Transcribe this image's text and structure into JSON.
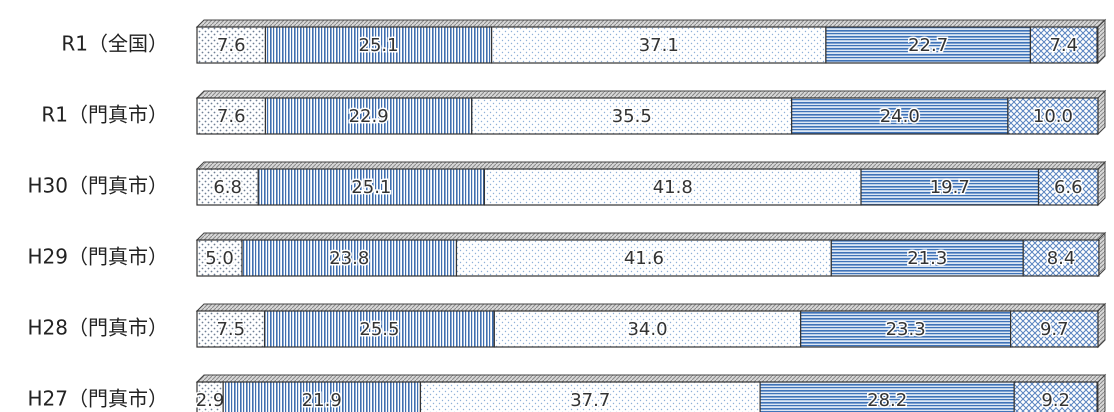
{
  "chart_data": {
    "type": "stacked-bar",
    "categories": [
      "R1（全国）",
      "R1（門真市）",
      "H30（門真市）",
      "H29（門真市）",
      "H28（門真市）",
      "H27（門真市）"
    ],
    "xlim": [
      0,
      100
    ],
    "series": [
      {
        "color": "#6f7f95",
        "values": [
          7.6,
          7.6,
          6.8,
          5.0,
          7.5,
          2.9
        ],
        "value_labels": [
          "7.6",
          "7.6",
          "6.8",
          "5.0",
          "7.5",
          "2.9"
        ]
      },
      {
        "color": "#3f6fb0",
        "values": [
          25.1,
          22.9,
          25.1,
          23.8,
          25.5,
          21.9
        ],
        "value_labels": [
          "25.1",
          "22.9",
          "25.1",
          "23.8",
          "25.5",
          "21.9"
        ]
      },
      {
        "color": "#8fb0d8",
        "values": [
          37.1,
          35.5,
          41.8,
          41.6,
          34.0,
          37.7
        ],
        "value_labels": [
          "37.1",
          "35.5",
          "41.8",
          "41.6",
          "34.0",
          "37.7"
        ]
      },
      {
        "color": "#3f73b8",
        "values": [
          22.7,
          24.0,
          19.7,
          21.3,
          23.3,
          28.2
        ],
        "value_labels": [
          "22.7",
          "24.0",
          "19.7",
          "21.3",
          "23.3",
          "28.2"
        ]
      },
      {
        "color": "#5a84c0",
        "values": [
          7.4,
          10.0,
          6.6,
          8.4,
          9.7,
          9.2
        ],
        "value_labels": [
          "7.4",
          "10.0",
          "6.6",
          "8.4",
          "9.7",
          "9.2"
        ]
      }
    ]
  }
}
